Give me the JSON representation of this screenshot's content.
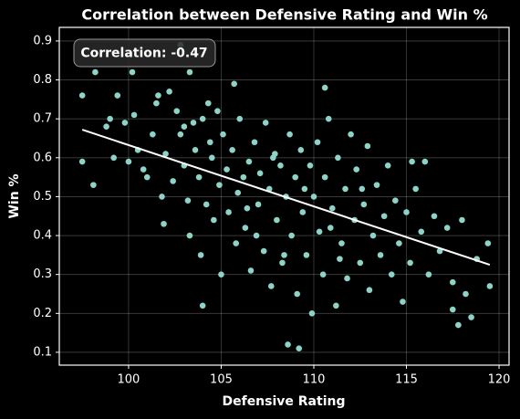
{
  "chart_data": {
    "type": "scatter",
    "title": "Correlation between Defensive Rating and Win %",
    "x_label": "Defensive Rating",
    "y_label": "Win %",
    "annotation": "Correlation: -0.47",
    "xlim": [
      96.26,
      120.54
    ],
    "ylim": [
      0.067,
      0.935
    ],
    "xticks": [
      100,
      105,
      110,
      115,
      120
    ],
    "yticks": [
      0.1,
      0.2,
      0.3,
      0.4,
      0.5,
      0.6,
      0.7,
      0.8,
      0.9
    ],
    "grid": true,
    "series": [
      {
        "color": "#8dd3c7",
        "x": [
          97.5,
          97.5,
          98.2,
          98.1,
          100.2,
          102.8,
          103.3,
          108.6,
          109.2,
          110.6,
          105.7,
          104.0,
          119.5,
          119.4,
          118.5,
          117.8,
          117.5,
          118.0,
          116.0,
          115.3,
          98.8,
          99.0,
          99.4,
          99.2,
          99.8,
          100.0,
          100.3,
          100.5,
          100.8,
          101.0,
          101.3,
          101.5,
          101.6,
          101.8,
          101.9,
          102.0,
          102.2,
          102.4,
          102.6,
          102.8,
          103.0,
          103.2,
          103.3,
          103.5,
          103.6,
          103.8,
          103.9,
          104.0,
          104.2,
          104.3,
          104.5,
          104.6,
          104.8,
          104.9,
          105.0,
          105.1,
          105.3,
          105.4,
          105.6,
          105.8,
          105.9,
          106.0,
          106.2,
          106.3,
          106.5,
          106.6,
          106.8,
          107.0,
          107.1,
          107.3,
          107.4,
          107.6,
          107.7,
          107.9,
          108.0,
          108.2,
          108.3,
          108.5,
          108.7,
          108.8,
          109.0,
          109.1,
          109.3,
          109.4,
          109.6,
          109.8,
          109.9,
          110.0,
          110.2,
          110.3,
          110.5,
          110.6,
          110.8,
          111.0,
          111.2,
          111.3,
          111.5,
          111.7,
          111.8,
          112.0,
          112.2,
          112.3,
          112.5,
          112.7,
          112.9,
          113.0,
          113.2,
          113.4,
          113.6,
          113.8,
          114.0,
          114.2,
          114.4,
          114.6,
          114.8,
          115.0,
          115.2,
          115.5,
          115.8,
          116.2,
          116.5,
          116.8,
          117.2,
          117.5,
          118.2,
          118.8,
          106.4,
          107.8,
          109.5,
          110.9,
          104.4,
          103.0,
          111.4,
          108.4,
          106.9,
          112.6
        ],
        "values": [
          0.76,
          0.59,
          0.82,
          0.53,
          0.82,
          0.89,
          0.82,
          0.12,
          0.11,
          0.78,
          0.79,
          0.22,
          0.27,
          0.38,
          0.19,
          0.17,
          0.21,
          0.44,
          0.59,
          0.59,
          0.68,
          0.7,
          0.76,
          0.6,
          0.69,
          0.59,
          0.71,
          0.62,
          0.57,
          0.55,
          0.66,
          0.74,
          0.76,
          0.5,
          0.43,
          0.61,
          0.77,
          0.54,
          0.72,
          0.66,
          0.58,
          0.49,
          0.4,
          0.69,
          0.62,
          0.55,
          0.35,
          0.7,
          0.48,
          0.74,
          0.6,
          0.44,
          0.72,
          0.53,
          0.3,
          0.66,
          0.57,
          0.46,
          0.62,
          0.38,
          0.51,
          0.7,
          0.55,
          0.42,
          0.59,
          0.31,
          0.64,
          0.48,
          0.56,
          0.36,
          0.69,
          0.52,
          0.27,
          0.61,
          0.44,
          0.58,
          0.33,
          0.5,
          0.66,
          0.4,
          0.55,
          0.25,
          0.62,
          0.46,
          0.35,
          0.58,
          0.2,
          0.5,
          0.64,
          0.41,
          0.3,
          0.55,
          0.7,
          0.47,
          0.22,
          0.6,
          0.38,
          0.52,
          0.29,
          0.66,
          0.44,
          0.57,
          0.33,
          0.48,
          0.63,
          0.26,
          0.4,
          0.53,
          0.35,
          0.45,
          0.58,
          0.3,
          0.49,
          0.38,
          0.23,
          0.46,
          0.33,
          0.52,
          0.41,
          0.3,
          0.45,
          0.36,
          0.42,
          0.28,
          0.25,
          0.34,
          0.47,
          0.6,
          0.52,
          0.42,
          0.64,
          0.68,
          0.34,
          0.35,
          0.4,
          0.52
        ]
      }
    ],
    "trend_line": {
      "color": "#ffffff",
      "x": [
        97.5,
        119.5
      ],
      "values": [
        0.672,
        0.325
      ]
    }
  }
}
